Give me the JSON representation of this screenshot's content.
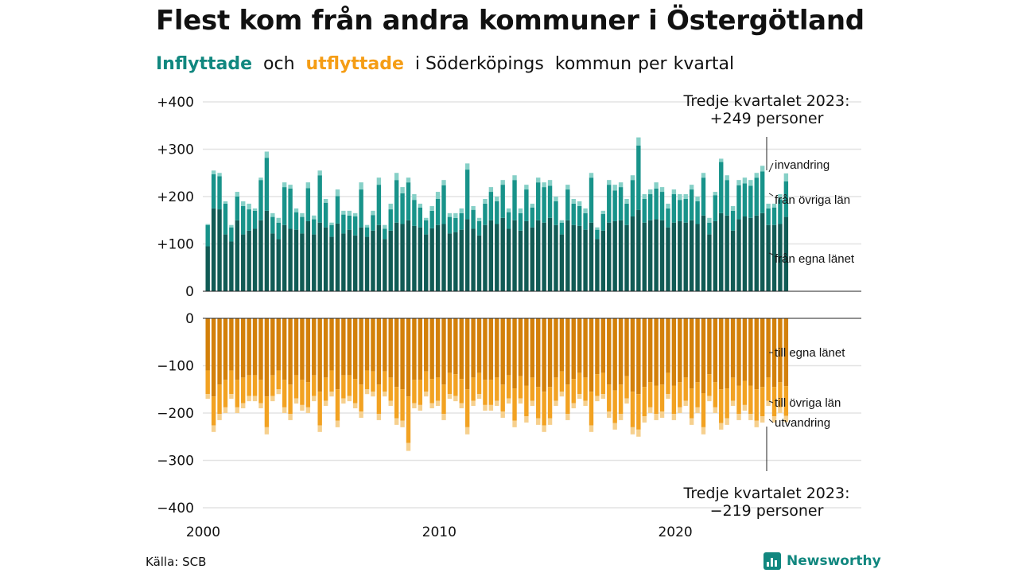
{
  "title": "Flest kom från andra kommuner i Östergötland",
  "subtitle": {
    "part1": "Inflyttade",
    "part2": "och",
    "part3": "utflyttade",
    "part4": "i Söderköpings",
    "part5": "kommun",
    "part6": "per",
    "part7": "kvartal"
  },
  "colors": {
    "in_own": "#115b55",
    "in_other": "#18938a",
    "in_immigration": "#86d0c7",
    "out_own": "#d3800a",
    "out_other": "#f2a222",
    "out_emigration": "#f6d08e",
    "title_in": "#11877f",
    "title_out": "#f59d15"
  },
  "source": "Källa: SCB",
  "logo": {
    "text": "Newsworthy",
    "icon": "bar-chart-logo-icon"
  },
  "chart_data": {
    "type": "bar",
    "layout": "stacked, diverging (inflow positive above, outflow negative below)",
    "x_tick_labels": [
      "2000",
      "2010",
      "2020"
    ],
    "y_tick_labels_top": [
      "+400",
      "+300",
      "+200",
      "+100",
      "0"
    ],
    "y_tick_labels_bottom": [
      "0",
      "−100",
      "−200",
      "−300",
      "−400"
    ],
    "ylim_top": [
      0,
      400
    ],
    "ylim_bottom": [
      -400,
      0
    ],
    "grid": true,
    "series_inflow_labels": [
      "invandring",
      "från övriga län",
      "från egna länet"
    ],
    "series_outflow_labels": [
      "till egna länet",
      "till övriga län",
      "utvandring"
    ],
    "annotation_top": {
      "line1": "Tredje kvartalet 2023:",
      "line2": "+249 personer"
    },
    "annotation_bottom": {
      "line1": "Tredje kvartalet 2023:",
      "line2": "−219 personer"
    },
    "inflow_total": [
      142,
      255,
      250,
      190,
      140,
      210,
      190,
      185,
      175,
      240,
      295,
      165,
      155,
      230,
      225,
      175,
      165,
      230,
      160,
      255,
      195,
      145,
      215,
      170,
      170,
      165,
      230,
      140,
      170,
      240,
      140,
      185,
      250,
      220,
      240,
      205,
      185,
      155,
      180,
      210,
      235,
      165,
      165,
      175,
      270,
      180,
      155,
      195,
      220,
      200,
      235,
      175,
      245,
      175,
      225,
      185,
      240,
      230,
      235,
      200,
      150,
      225,
      195,
      190,
      175,
      250,
      135,
      170,
      235,
      225,
      230,
      195,
      245,
      325,
      205,
      215,
      230,
      220,
      185,
      215,
      205,
      205,
      225,
      200,
      250,
      155,
      210,
      280,
      245,
      180,
      235,
      240,
      235,
      250,
      265,
      185,
      185,
      205,
      249
    ],
    "inflow_own": [
      95,
      175,
      173,
      120,
      105,
      150,
      120,
      128,
      132,
      150,
      170,
      122,
      110,
      140,
      132,
      130,
      122,
      148,
      120,
      145,
      135,
      115,
      143,
      122,
      130,
      118,
      135,
      115,
      128,
      140,
      110,
      128,
      145,
      142,
      150,
      138,
      135,
      120,
      133,
      140,
      142,
      122,
      125,
      130,
      152,
      132,
      118,
      140,
      150,
      142,
      155,
      132,
      150,
      128,
      148,
      135,
      150,
      145,
      155,
      140,
      120,
      150,
      140,
      138,
      130,
      145,
      110,
      128,
      145,
      148,
      150,
      140,
      158,
      172,
      145,
      150,
      152,
      150,
      135,
      145,
      148,
      145,
      150,
      142,
      160,
      120,
      148,
      165,
      160,
      128,
      152,
      158,
      155,
      160,
      165,
      140,
      140,
      142,
      157
    ],
    "inflow_other": [
      45,
      72,
      70,
      65,
      30,
      50,
      60,
      45,
      38,
      85,
      112,
      35,
      35,
      80,
      85,
      37,
      35,
      70,
      32,
      100,
      52,
      25,
      58,
      40,
      30,
      40,
      80,
      20,
      33,
      85,
      22,
      45,
      90,
      65,
      80,
      55,
      42,
      30,
      37,
      55,
      82,
      35,
      30,
      35,
      105,
      40,
      30,
      45,
      60,
      48,
      70,
      35,
      85,
      37,
      67,
      42,
      80,
      75,
      68,
      50,
      25,
      65,
      45,
      42,
      35,
      95,
      20,
      35,
      80,
      65,
      70,
      45,
      77,
      136,
      50,
      55,
      65,
      60,
      40,
      60,
      45,
      50,
      65,
      48,
      80,
      25,
      55,
      108,
      75,
      42,
      72,
      70,
      68,
      80,
      88,
      35,
      37,
      52,
      75
    ],
    "outflow_total": [
      170,
      240,
      215,
      200,
      170,
      200,
      190,
      175,
      175,
      190,
      245,
      175,
      160,
      200,
      215,
      180,
      195,
      200,
      175,
      240,
      185,
      165,
      230,
      180,
      175,
      190,
      210,
      160,
      165,
      215,
      165,
      185,
      225,
      230,
      280,
      190,
      195,
      165,
      190,
      185,
      215,
      170,
      175,
      190,
      245,
      185,
      170,
      195,
      195,
      185,
      210,
      180,
      230,
      180,
      220,
      185,
      225,
      240,
      225,
      185,
      165,
      215,
      190,
      170,
      185,
      240,
      175,
      170,
      210,
      235,
      215,
      180,
      245,
      250,
      220,
      200,
      215,
      210,
      170,
      215,
      200,
      185,
      225,
      200,
      245,
      175,
      200,
      235,
      225,
      185,
      215,
      195,
      215,
      230,
      220,
      185,
      220,
      200,
      219
    ],
    "outflow_own": [
      110,
      165,
      140,
      130,
      110,
      130,
      125,
      120,
      120,
      130,
      165,
      120,
      110,
      130,
      140,
      120,
      130,
      135,
      120,
      155,
      125,
      110,
      150,
      120,
      120,
      128,
      140,
      110,
      112,
      140,
      112,
      125,
      145,
      150,
      165,
      130,
      130,
      112,
      128,
      125,
      140,
      115,
      118,
      128,
      150,
      125,
      115,
      130,
      130,
      125,
      140,
      120,
      148,
      122,
      142,
      125,
      145,
      155,
      145,
      125,
      112,
      140,
      128,
      115,
      125,
      155,
      118,
      115,
      140,
      152,
      140,
      122,
      155,
      160,
      145,
      135,
      142,
      140,
      115,
      142,
      135,
      125,
      148,
      135,
      158,
      118,
      135,
      150,
      148,
      125,
      142,
      132,
      142,
      150,
      145,
      125,
      145,
      135,
      143
    ]
  }
}
